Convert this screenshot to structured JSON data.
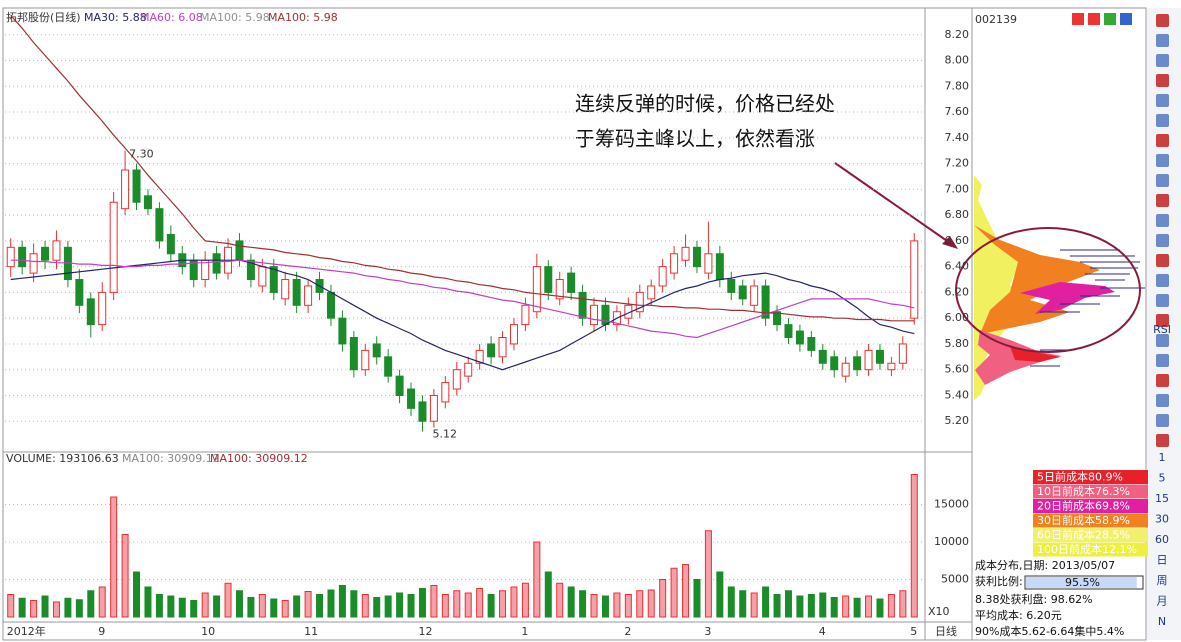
{
  "chart_data": {
    "type": "candlestick",
    "title": "拓邦股份(日线)",
    "categories": [
      "2012年",
      null,
      null,
      null,
      null,
      null,
      null,
      null,
      "9",
      null,
      null,
      null,
      null,
      null,
      null,
      null,
      null,
      "10",
      null,
      null,
      null,
      null,
      null,
      null,
      null,
      null,
      "11",
      null,
      null,
      null,
      null,
      null,
      null,
      null,
      null,
      null,
      "12",
      null,
      null,
      null,
      null,
      null,
      null,
      null,
      null,
      "1",
      null,
      null,
      null,
      null,
      null,
      null,
      null,
      null,
      "2",
      null,
      null,
      null,
      null,
      null,
      null,
      "3",
      null,
      null,
      null,
      null,
      null,
      null,
      null,
      null,
      null,
      "4",
      null,
      null,
      null,
      null,
      null,
      null,
      null,
      "5"
    ],
    "open": [
      6.4,
      6.55,
      6.35,
      6.55,
      6.45,
      6.55,
      6.3,
      6.15,
      5.95,
      6.2,
      6.85,
      7.15,
      6.95,
      6.85,
      6.65,
      6.5,
      6.45,
      6.3,
      6.5,
      6.35,
      6.6,
      6.45,
      6.25,
      6.4,
      6.15,
      6.3,
      6.1,
      6.3,
      6.2,
      6.0,
      5.85,
      5.6,
      5.8,
      5.7,
      5.55,
      5.45,
      5.35,
      5.2,
      5.35,
      5.45,
      5.55,
      5.65,
      5.8,
      5.7,
      5.8,
      5.95,
      6.05,
      6.4,
      6.15,
      6.35,
      6.2,
      5.95,
      6.1,
      5.95,
      6.0,
      6.05,
      6.15,
      6.25,
      6.35,
      6.45,
      6.55,
      6.35,
      6.5,
      6.3,
      6.25,
      6.1,
      6.25,
      6.05,
      5.95,
      5.9,
      5.85,
      5.75,
      5.7,
      5.55,
      5.7,
      5.6,
      5.75,
      5.6,
      5.65,
      6.0
    ],
    "high": [
      6.62,
      6.6,
      6.58,
      6.6,
      6.68,
      6.6,
      6.38,
      6.2,
      6.28,
      6.98,
      7.3,
      7.2,
      7.0,
      6.9,
      6.72,
      6.56,
      6.5,
      6.52,
      6.56,
      6.62,
      6.66,
      6.5,
      6.46,
      6.46,
      6.36,
      6.36,
      6.3,
      6.36,
      6.26,
      6.06,
      5.9,
      5.8,
      5.86,
      5.76,
      5.6,
      5.5,
      5.4,
      5.45,
      5.55,
      5.66,
      5.7,
      5.8,
      5.86,
      5.9,
      6.0,
      6.16,
      6.5,
      6.45,
      6.36,
      6.4,
      6.26,
      6.16,
      6.16,
      6.1,
      6.16,
      6.26,
      6.3,
      6.46,
      6.56,
      6.65,
      6.6,
      6.75,
      6.56,
      6.36,
      6.3,
      6.3,
      6.3,
      6.1,
      6.0,
      5.95,
      5.9,
      5.8,
      5.75,
      5.7,
      5.75,
      5.8,
      5.8,
      5.7,
      5.86,
      6.66
    ],
    "low": [
      6.32,
      6.34,
      6.28,
      6.38,
      6.38,
      6.24,
      6.04,
      5.85,
      5.9,
      6.14,
      6.8,
      6.84,
      6.8,
      6.54,
      6.44,
      6.34,
      6.24,
      6.24,
      6.3,
      6.3,
      6.4,
      6.24,
      6.2,
      6.14,
      6.1,
      6.04,
      6.04,
      6.14,
      5.94,
      5.74,
      5.54,
      5.55,
      5.64,
      5.5,
      5.34,
      5.24,
      5.12,
      5.15,
      5.3,
      5.4,
      5.5,
      5.6,
      5.64,
      5.65,
      5.75,
      5.9,
      6.0,
      6.14,
      6.1,
      6.14,
      5.94,
      5.9,
      5.9,
      5.9,
      5.95,
      6.0,
      6.1,
      6.2,
      6.3,
      6.4,
      6.35,
      6.3,
      6.24,
      6.14,
      6.1,
      6.05,
      5.94,
      5.9,
      5.8,
      5.74,
      5.7,
      5.6,
      5.54,
      5.5,
      5.55,
      5.55,
      5.6,
      5.55,
      5.6,
      5.95
    ],
    "close": [
      6.55,
      6.4,
      6.5,
      6.45,
      6.6,
      6.3,
      6.1,
      5.95,
      6.2,
      6.9,
      7.15,
      6.9,
      6.85,
      6.6,
      6.5,
      6.4,
      6.3,
      6.45,
      6.35,
      6.55,
      6.45,
      6.3,
      6.4,
      6.2,
      6.3,
      6.1,
      6.25,
      6.2,
      6.0,
      5.8,
      5.6,
      5.75,
      5.7,
      5.55,
      5.4,
      5.3,
      5.2,
      5.4,
      5.5,
      5.6,
      5.65,
      5.75,
      5.7,
      5.85,
      5.95,
      6.1,
      6.4,
      6.2,
      6.3,
      6.2,
      6.0,
      6.1,
      5.95,
      6.05,
      6.1,
      6.2,
      6.25,
      6.4,
      6.5,
      6.55,
      6.4,
      6.5,
      6.3,
      6.2,
      6.15,
      6.25,
      6.0,
      5.95,
      5.85,
      5.8,
      5.75,
      5.65,
      5.6,
      5.65,
      5.6,
      5.75,
      5.65,
      5.65,
      5.8,
      6.6
    ],
    "up_color": "#e83030",
    "down_color": "#1a8c2a",
    "series": [
      {
        "name": "MA30: 5.88",
        "color": "#24246e",
        "values": [
          6.3,
          6.31,
          6.32,
          6.33,
          6.34,
          6.35,
          6.36,
          6.37,
          6.38,
          6.39,
          6.4,
          6.41,
          6.42,
          6.43,
          6.44,
          6.45,
          6.45,
          6.45,
          6.45,
          6.45,
          6.45,
          6.43,
          6.4,
          6.38,
          6.35,
          6.33,
          6.3,
          6.25,
          6.2,
          6.15,
          6.1,
          6.05,
          6.0,
          5.96,
          5.92,
          5.88,
          5.83,
          5.79,
          5.75,
          5.72,
          5.69,
          5.66,
          5.63,
          5.6,
          5.63,
          5.66,
          5.69,
          5.72,
          5.75,
          5.8,
          5.85,
          5.9,
          5.95,
          6.0,
          6.04,
          6.08,
          6.12,
          6.16,
          6.2,
          6.23,
          6.25,
          6.28,
          6.3,
          6.31,
          6.33,
          6.34,
          6.35,
          6.33,
          6.3,
          6.28,
          6.25,
          6.23,
          6.2,
          6.14,
          6.08,
          6.01,
          5.95,
          5.93,
          5.9,
          5.88
        ]
      },
      {
        "name": "MA60: 6.08",
        "color": "#c040c0",
        "values": [
          6.45,
          6.45,
          6.44,
          6.44,
          6.43,
          6.43,
          6.42,
          6.42,
          6.41,
          6.41,
          6.4,
          6.4,
          6.41,
          6.41,
          6.42,
          6.42,
          6.43,
          6.43,
          6.44,
          6.44,
          6.45,
          6.44,
          6.43,
          6.42,
          6.41,
          6.4,
          6.39,
          6.38,
          6.37,
          6.36,
          6.35,
          6.33,
          6.32,
          6.3,
          6.29,
          6.27,
          6.26,
          6.24,
          6.23,
          6.21,
          6.2,
          6.18,
          6.16,
          6.14,
          6.13,
          6.11,
          6.09,
          6.07,
          6.05,
          6.03,
          6.01,
          5.99,
          5.98,
          5.96,
          5.94,
          5.92,
          5.9,
          5.89,
          5.88,
          5.86,
          5.85,
          5.88,
          5.91,
          5.94,
          5.97,
          6.0,
          6.03,
          6.06,
          6.09,
          6.12,
          6.15,
          6.15,
          6.15,
          6.15,
          6.15,
          6.15,
          6.13,
          6.11,
          6.1,
          6.08
        ]
      },
      {
        "name": "MA100: 5.98",
        "color": "#909090",
        "values": null
      },
      {
        "name": "MA100: 5.98",
        "color": "#a03030",
        "values": [
          8.35,
          8.25,
          8.14,
          8.04,
          7.94,
          7.84,
          7.73,
          7.63,
          7.53,
          7.42,
          7.32,
          7.22,
          7.11,
          7.01,
          6.91,
          6.81,
          6.7,
          6.6,
          6.59,
          6.58,
          6.56,
          6.55,
          6.54,
          6.53,
          6.51,
          6.5,
          6.49,
          6.47,
          6.46,
          6.44,
          6.43,
          6.41,
          6.4,
          6.38,
          6.37,
          6.35,
          6.34,
          6.32,
          6.31,
          6.29,
          6.28,
          6.26,
          6.25,
          6.23,
          6.22,
          6.2,
          6.19,
          6.18,
          6.17,
          6.16,
          6.15,
          6.14,
          6.13,
          6.12,
          6.11,
          6.1,
          6.1,
          6.09,
          6.09,
          6.08,
          6.08,
          6.07,
          6.07,
          6.06,
          6.06,
          6.05,
          6.04,
          6.04,
          6.03,
          6.02,
          6.01,
          6.01,
          6.0,
          6.0,
          5.99,
          5.99,
          5.99,
          5.98,
          5.98,
          5.98
        ]
      }
    ],
    "ylim": [
      5.0,
      8.4
    ],
    "yticks": [
      {
        "value": 8.2,
        "label": "8.20"
      },
      {
        "value": 8.0,
        "label": "8.00"
      },
      {
        "value": 7.8,
        "label": "7.80"
      },
      {
        "value": 7.6,
        "label": "7.60"
      },
      {
        "value": 7.4,
        "label": "7.40"
      },
      {
        "value": 7.2,
        "label": "7.20"
      },
      {
        "value": 7.0,
        "label": "7.00"
      },
      {
        "value": 6.8,
        "label": "6.80"
      },
      {
        "value": 6.6,
        "label": "6.60"
      },
      {
        "value": 6.4,
        "label": "6.40"
      },
      {
        "value": 6.2,
        "label": "6.20"
      },
      {
        "value": 6.0,
        "label": "6.00"
      },
      {
        "value": 5.8,
        "label": "5.80"
      },
      {
        "value": 5.6,
        "label": "5.60"
      },
      {
        "value": 5.4,
        "label": "5.40"
      },
      {
        "value": 5.2,
        "label": "5.20"
      }
    ],
    "grid": true,
    "annotations": [
      "7.30",
      "5.12"
    ],
    "callout": [
      "连续反弹的时候，价格已经处",
      "于筹码主峰以上，依然看涨"
    ],
    "volume": {
      "label": "VOLUME: 193106.63",
      "ma_labels": [
        "MA100: 30909.12",
        "MA100: 30909.12"
      ],
      "scale_label": "X10",
      "values": [
        3000,
        2500,
        2200,
        2800,
        2000,
        2500,
        2300,
        3500,
        4000,
        16000,
        11000,
        6000,
        4000,
        3000,
        2800,
        2500,
        2200,
        3200,
        2800,
        4500,
        3500,
        2600,
        3000,
        2400,
        2200,
        2800,
        3400,
        3000,
        3600,
        4200,
        3500,
        3000,
        2600,
        2800,
        3200,
        3000,
        3800,
        4200,
        3000,
        3500,
        3200,
        3800,
        3000,
        3500,
        4000,
        4500,
        10000,
        6000,
        4500,
        4000,
        3500,
        3000,
        2800,
        3200,
        3000,
        3500,
        3600,
        5000,
        6500,
        7000,
        5000,
        11500,
        6000,
        4000,
        3500,
        3200,
        4000,
        3000,
        3500,
        2800,
        3000,
        3200,
        2600,
        2800,
        2500,
        2800,
        2400,
        3000,
        3500,
        19000
      ],
      "ylim": [
        0,
        20000
      ],
      "yticks": [
        15000,
        10000,
        5000
      ]
    },
    "period_label": "日线"
  },
  "side_panel": {
    "code": "002139",
    "legend": [
      {
        "label": "5日前成本80.9%",
        "color": "#e8202a"
      },
      {
        "label": "10日前成本76.3%",
        "color": "#f06080"
      },
      {
        "label": "20日前成本69.8%",
        "color": "#e020a0"
      },
      {
        "label": "30日前成本58.9%",
        "color": "#f08020"
      },
      {
        "label": "60日前成本28.5%",
        "color": "#f0f070"
      },
      {
        "label": "100日前成本12.1%",
        "color": "#eef040"
      }
    ],
    "date_label": "成本分布,日期: 2013/05/07",
    "profit_label": "获利比例:",
    "profit_ratio": 95.5,
    "profit_ratio_label": "95.5%",
    "lines": [
      "8.38处获利盘: 98.62%",
      "平均成本: 6.20元",
      "90%成本5.62-6.64集中5.4%"
    ]
  },
  "toolbar": [
    "RSI",
    "1",
    "5",
    "15",
    "30",
    "60",
    "日",
    "周",
    "月",
    "N"
  ]
}
